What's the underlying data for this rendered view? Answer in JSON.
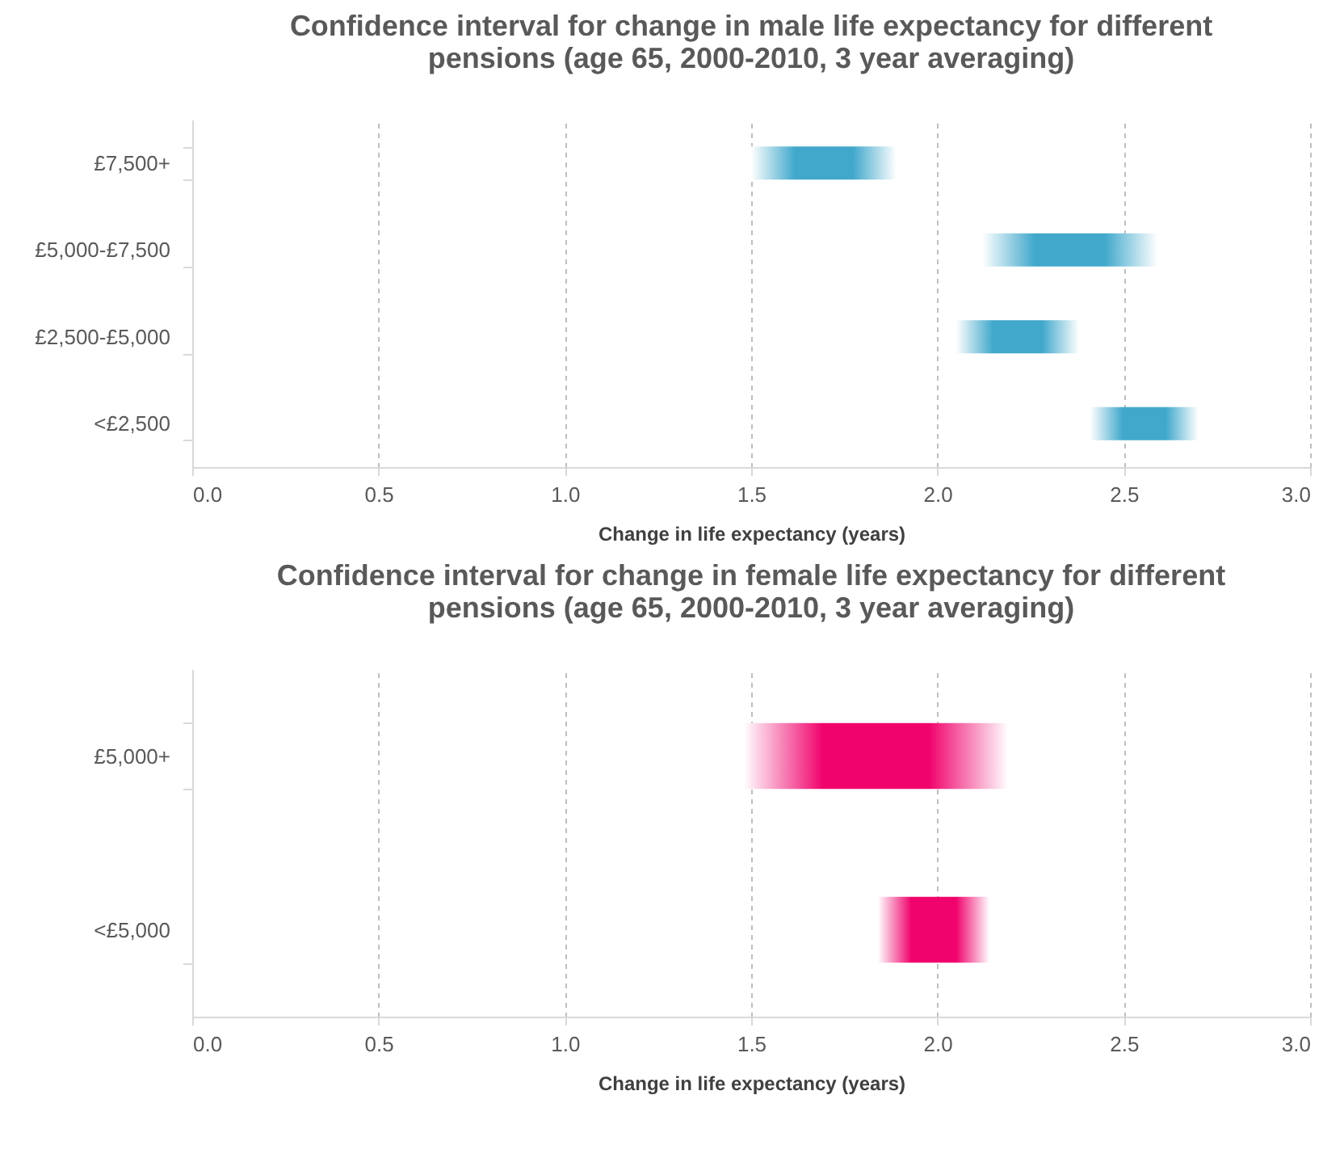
{
  "chart_data": [
    {
      "type": "bar",
      "orientation": "horizontal",
      "title": "Confidence interval for change in male life expectancy for different pensions (age 65, 2000-2010, 3 year averaging)",
      "xlabel": "Change in life expectancy (years)",
      "categories": [
        "£7,500+",
        "£5,000-£7,500",
        "£2,500-£5,000",
        "<£2,500"
      ],
      "series": [
        {
          "color": "#41a8cc",
          "values": [
            0.39,
            0.47,
            0.33,
            0.29
          ],
          "base": [
            1.5,
            2.12,
            2.05,
            2.41
          ]
        }
      ],
      "xlim": [
        0,
        3
      ],
      "xticks": [
        {
          "value": 0,
          "label": "0.0"
        },
        {
          "value": 0.5,
          "label": "0.5"
        },
        {
          "value": 1,
          "label": "1.0"
        },
        {
          "value": 1.5,
          "label": "1.5"
        },
        {
          "value": 2,
          "label": "2.0"
        },
        {
          "value": 2.5,
          "label": "2.5"
        },
        {
          "value": 3,
          "label": "3.0"
        }
      ],
      "grid": "x"
    },
    {
      "type": "bar",
      "orientation": "horizontal",
      "title": "Confidence interval for change in female life expectancy for different pensions (age 65, 2000-2010, 3 year averaging)",
      "xlabel": "Change in life expectancy (years)",
      "categories": [
        "£5,000+",
        "<£5,000"
      ],
      "series": [
        {
          "color": "#f0036c",
          "values": [
            0.71,
            0.3
          ],
          "base": [
            1.48,
            1.84
          ]
        }
      ],
      "xlim": [
        0,
        3
      ],
      "xticks": [
        {
          "value": 0,
          "label": "0.0"
        },
        {
          "value": 0.5,
          "label": "0.5"
        },
        {
          "value": 1,
          "label": "1.0"
        },
        {
          "value": 1.5,
          "label": "1.5"
        },
        {
          "value": 2,
          "label": "2.0"
        },
        {
          "value": 2.5,
          "label": "2.5"
        },
        {
          "value": 3,
          "label": "3.0"
        }
      ],
      "grid": "x"
    }
  ]
}
